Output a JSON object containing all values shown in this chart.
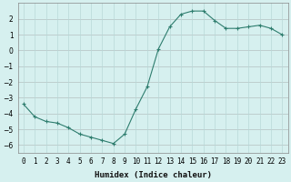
{
  "x": [
    0,
    1,
    2,
    3,
    4,
    5,
    6,
    7,
    8,
    9,
    10,
    11,
    12,
    13,
    14,
    15,
    16,
    17,
    18,
    19,
    20,
    21,
    22,
    23
  ],
  "y": [
    -3.4,
    -4.2,
    -4.5,
    -4.6,
    -4.9,
    -5.3,
    -5.5,
    -5.7,
    -5.9,
    -5.3,
    -3.7,
    -2.3,
    0.1,
    1.5,
    2.3,
    2.5,
    2.5,
    1.9,
    1.4,
    1.4,
    1.5,
    1.6,
    1.4,
    1.0
  ],
  "line_color": "#2e7d6e",
  "marker": "+",
  "marker_size": 3,
  "bg_color": "#d6f0ef",
  "grid_color": "#b8d8d8",
  "grid_major_color": "#c8a8a8",
  "xlabel": "Humidex (Indice chaleur)",
  "ylim": [
    -6.5,
    3.0
  ],
  "xlim": [
    -0.5,
    23.5
  ],
  "yticks": [
    -6,
    -5,
    -4,
    -3,
    -2,
    -1,
    0,
    1,
    2
  ],
  "xtick_labels": [
    "0",
    "1",
    "2",
    "3",
    "4",
    "5",
    "6",
    "7",
    "8",
    "9",
    "10",
    "11",
    "12",
    "13",
    "14",
    "15",
    "16",
    "17",
    "18",
    "19",
    "20",
    "21",
    "22",
    "23"
  ],
  "font_size_label": 6.5,
  "font_size_tick": 5.5
}
